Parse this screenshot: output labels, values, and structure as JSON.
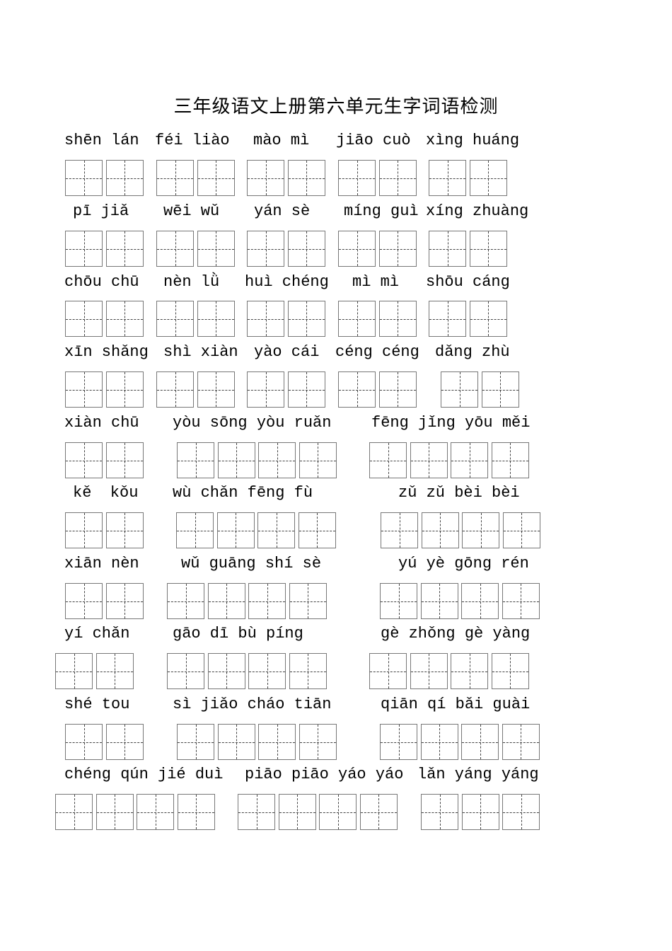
{
  "title": "三年级语文上册第六单元生字词语检测",
  "rows": [
    {
      "groups": [
        {
          "pinyin": "shēn lán"
        },
        {
          "pinyin": "féi liào"
        },
        {
          "pinyin": "mào mì"
        },
        {
          "pinyin": "jiāo cuò"
        },
        {
          "pinyin": "xìng huáng"
        }
      ]
    },
    {
      "groups": [
        {
          "pinyin": "pī jiǎ"
        },
        {
          "pinyin": "wēi wǔ"
        },
        {
          "pinyin": "yán sè"
        },
        {
          "pinyin": "míng guì"
        },
        {
          "pinyin": "xíng zhuàng"
        }
      ]
    },
    {
      "groups": [
        {
          "pinyin": "chōu chū"
        },
        {
          "pinyin": "nèn lǜ"
        },
        {
          "pinyin": "huì chéng"
        },
        {
          "pinyin": "mì mì"
        },
        {
          "pinyin": "shōu cáng"
        }
      ]
    },
    {
      "groups": [
        {
          "pinyin": "xīn shǎng"
        },
        {
          "pinyin": "shì xiàn"
        },
        {
          "pinyin": "yào cái"
        },
        {
          "pinyin": "céng céng"
        },
        {
          "pinyin": "dǎng zhù"
        }
      ]
    },
    {
      "groups": [
        {
          "pinyin": "xiàn chū"
        },
        {
          "pinyin": "yòu sōng yòu ruǎn"
        },
        {
          "pinyin": "fēng jǐng yōu měi"
        }
      ]
    },
    {
      "groups": [
        {
          "pinyin": "kě  kǒu"
        },
        {
          "pinyin": "wù chǎn fēng fù"
        },
        {
          "pinyin": "zǔ zǔ bèi bèi"
        }
      ]
    },
    {
      "groups": [
        {
          "pinyin": "xiān nèn"
        },
        {
          "pinyin": "wǔ guāng shí sè"
        },
        {
          "pinyin": "yú yè gōng rén"
        }
      ]
    },
    {
      "groups": [
        {
          "pinyin": "yí chǎn"
        },
        {
          "pinyin": "gāo dī bù píng"
        },
        {
          "pinyin": "gè zhǒng gè yàng"
        }
      ]
    },
    {
      "groups": [
        {
          "pinyin": "shé tou"
        },
        {
          "pinyin": "sì jiǎo cháo tiān"
        },
        {
          "pinyin": "qiān qí bǎi guài"
        }
      ]
    },
    {
      "groups": [
        {
          "pinyin": "chéng qún jié duì"
        },
        {
          "pinyin": "piāo piāo yáo yáo"
        },
        {
          "pinyin": "lǎn yáng yáng"
        }
      ]
    }
  ]
}
